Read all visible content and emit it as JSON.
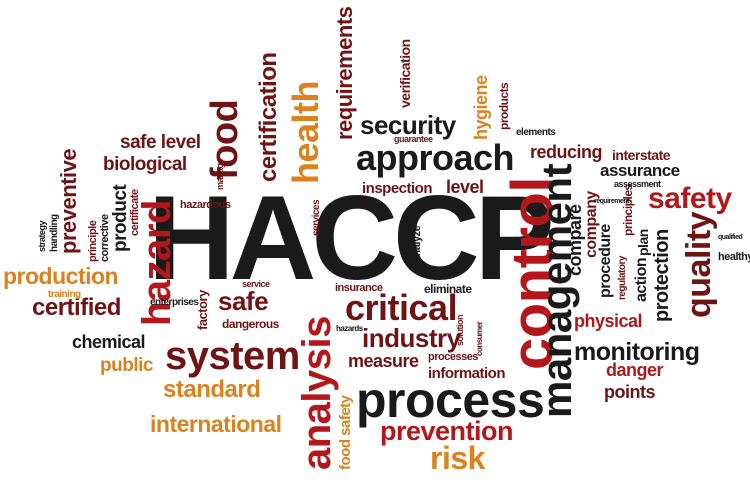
{
  "colors": {
    "black": "#1a1a1a",
    "red": "#b3171c",
    "maroon": "#6e1414",
    "orange": "#d9821e",
    "darkorange": "#b05a16"
  },
  "words": {
    "haccp": "HACCP",
    "control": "control",
    "process": "process",
    "management": "management",
    "system": "system",
    "analysis": "analysis",
    "critical": "critical",
    "approach": "approach",
    "hazard": "hazard",
    "health": "health",
    "food": "food",
    "quality": "quality",
    "safety": "safety",
    "risk": "risk",
    "prevention": "prevention",
    "monitoring": "monitoring",
    "industry": "industry",
    "security": "security",
    "standard": "standard",
    "international": "international",
    "production": "production",
    "certification": "certification",
    "requirements": "requirements",
    "preventive": "preventive",
    "safe": "safe",
    "certified": "certified",
    "chemical": "chemical",
    "public": "public",
    "biological": "biological",
    "safe_level": "safe level",
    "product": "product",
    "measure": "measure",
    "information": "information",
    "danger": "danger",
    "points": "points",
    "physical": "physical",
    "protection": "protection",
    "compare": "compare",
    "company": "company",
    "procedure": "procedure",
    "assurance": "assurance",
    "interstate": "interstate",
    "reducing": "reducing",
    "hygiene": "hygiene",
    "verification": "verification",
    "inspection": "inspection",
    "level": "level",
    "food_safety": "food safety",
    "factory": "factory",
    "dangerous": "dangerous",
    "eliminate": "eliminate",
    "insurance": "insurance",
    "training": "training",
    "handling": "handling",
    "strategy": "strategy",
    "principle": "principle",
    "corrective": "corrective",
    "certificate": "certificate",
    "hazardous": "hazardous",
    "enterprises": "enterprises",
    "service": "service",
    "services": "services",
    "processes": "processes",
    "elements": "elements",
    "products": "products",
    "guarantee": "guarantee",
    "healthy": "healthy",
    "regulatory": "regulatory",
    "action": "action",
    "plan": "plan",
    "principles": "principles",
    "assessment": "assessment",
    "analyze": "analyze",
    "solution": "solution",
    "manage": "manage",
    "hazards": "hazards",
    "requirement": "requirement",
    "qualified": "qualified",
    "consumer": "consumer"
  }
}
